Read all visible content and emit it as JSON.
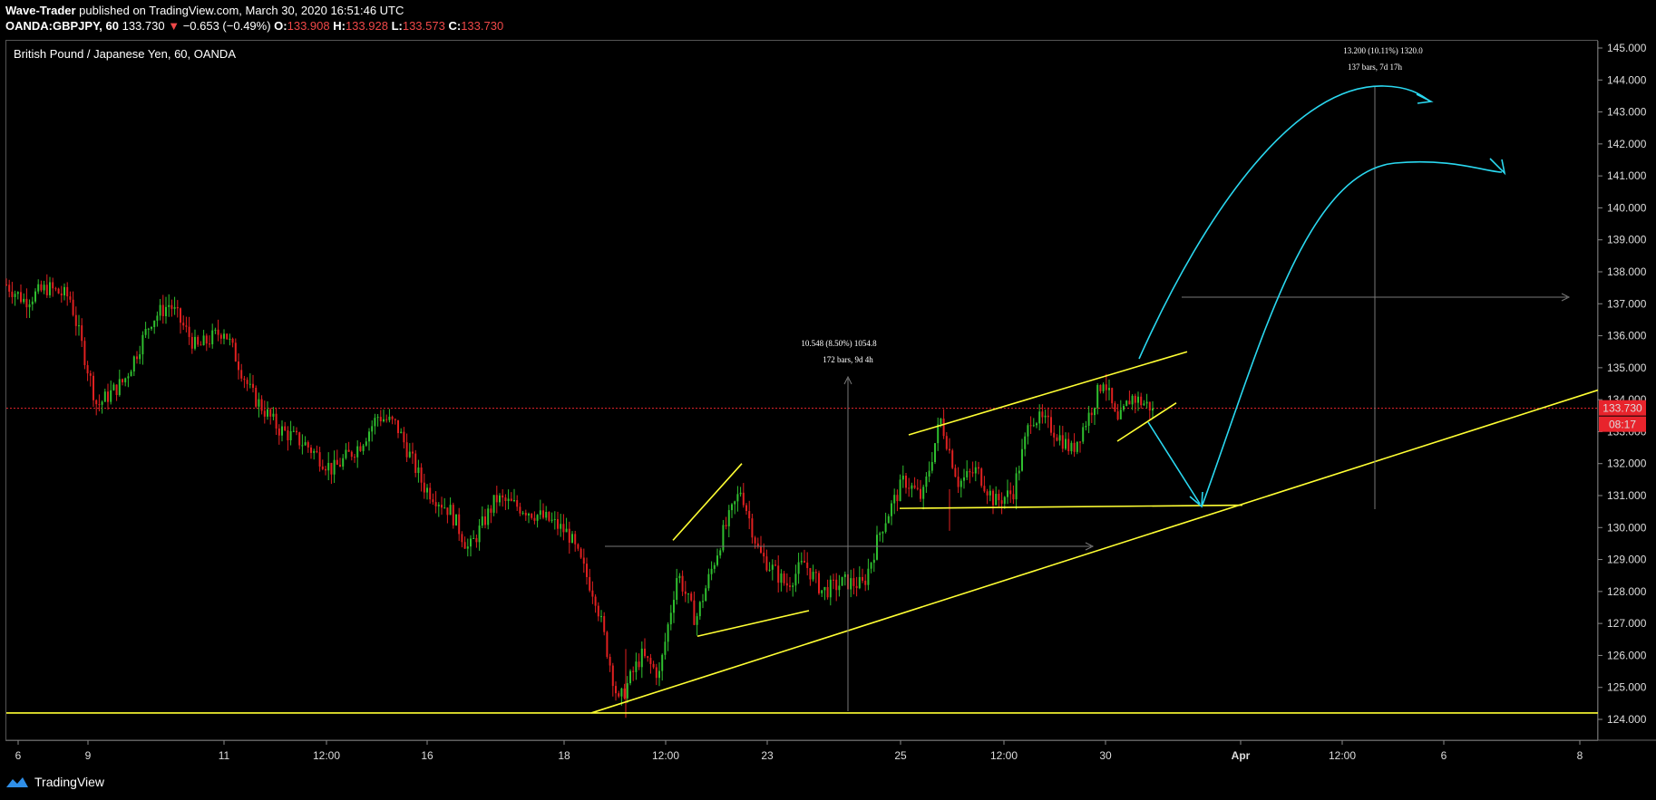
{
  "header": {
    "author": "Wave-Trader",
    "published_text": " published on TradingView.com, March 30, 2020 16:51:46 UTC",
    "symbol": "OANDA:GBPJPY, 60",
    "last": " 133.730 ",
    "change_arrow": "▼",
    "change": " −0.653 (−0.49%) ",
    "o_label": "O:",
    "o_value": "133.908",
    "h_label": " H:",
    "h_value": "133.928",
    "l_label": " L:",
    "l_value": "133.573",
    "c_label": " C:",
    "c_value": "133.730"
  },
  "chart_title": "British Pound / Japanese Yen, 60, OANDA",
  "footer": {
    "brand": "TradingView"
  },
  "colors": {
    "up": "#2fbf2f",
    "down": "#e02020",
    "trendline": "#ffff33",
    "projection": "#2ad8f0",
    "price_label": "#e8242c"
  },
  "chart_data": {
    "type": "candlestick",
    "title": "British Pound / Japanese Yen, 60, OANDA",
    "ylim": [
      123.2,
      145.2
    ],
    "y_ticks": [
      "145.000",
      "144.000",
      "143.000",
      "142.000",
      "141.000",
      "140.000",
      "139.000",
      "138.000",
      "137.000",
      "136.000",
      "135.000",
      "134.000",
      "133.000",
      "132.000",
      "131.000",
      "130.000",
      "129.000",
      "128.000",
      "127.000",
      "126.000",
      "125.000",
      "124.000"
    ],
    "x_ticks": [
      "6",
      "9",
      "11",
      "12:00",
      "16",
      "18",
      "12:00",
      "23",
      "25",
      "12:00",
      "30",
      "Apr",
      "12:00",
      "6",
      "8"
    ],
    "last_price": "133.730",
    "countdown": "08:17",
    "price_path_hint": "approximate hourly candles from ~137.6 down to ~124.3 low, then up to ~134.7 and current 133.73",
    "anchors": [
      [
        0,
        137.6
      ],
      [
        20,
        137.1
      ],
      [
        45,
        137.5
      ],
      [
        70,
        137.2
      ],
      [
        100,
        133.8
      ],
      [
        130,
        134.6
      ],
      [
        160,
        136.5
      ],
      [
        180,
        137.0
      ],
      [
        210,
        135.6
      ],
      [
        240,
        136.2
      ],
      [
        270,
        134.2
      ],
      [
        300,
        133.1
      ],
      [
        330,
        132.6
      ],
      [
        360,
        131.8
      ],
      [
        390,
        132.6
      ],
      [
        410,
        133.5
      ],
      [
        430,
        133.2
      ],
      [
        460,
        131.3
      ],
      [
        490,
        130.5
      ],
      [
        510,
        129.3
      ],
      [
        540,
        130.9
      ],
      [
        570,
        130.6
      ],
      [
        600,
        130.2
      ],
      [
        620,
        129.8
      ],
      [
        650,
        127.8
      ],
      [
        675,
        124.5
      ],
      [
        700,
        126.0
      ],
      [
        720,
        125.4
      ],
      [
        740,
        128.6
      ],
      [
        760,
        127.1
      ],
      [
        790,
        129.8
      ],
      [
        810,
        131.2
      ],
      [
        830,
        129.2
      ],
      [
        860,
        128.2
      ],
      [
        880,
        128.9
      ],
      [
        900,
        128.0
      ],
      [
        925,
        128.3
      ],
      [
        945,
        128.2
      ],
      [
        965,
        130.0
      ],
      [
        990,
        131.5
      ],
      [
        1010,
        130.9
      ],
      [
        1030,
        133.4
      ],
      [
        1050,
        131.4
      ],
      [
        1070,
        131.8
      ],
      [
        1090,
        130.8
      ],
      [
        1110,
        131.1
      ],
      [
        1130,
        133.5
      ],
      [
        1150,
        133.2
      ],
      [
        1175,
        132.4
      ],
      [
        1195,
        133.6
      ],
      [
        1210,
        134.7
      ],
      [
        1225,
        133.2
      ],
      [
        1240,
        134.1
      ],
      [
        1265,
        133.73
      ]
    ],
    "trendlines": [
      {
        "name": "support-horizontal",
        "points": [
          [
            0,
            124.2
          ],
          [
            1762,
            124.2
          ]
        ]
      },
      {
        "name": "rising-support",
        "points": [
          [
            645,
            124.2
          ],
          [
            1762,
            134.3
          ]
        ]
      },
      {
        "name": "wedge-left-upper",
        "points": [
          [
            735,
            129.6
          ],
          [
            811,
            132.0
          ]
        ]
      },
      {
        "name": "wedge-left-lower",
        "points": [
          [
            762,
            126.6
          ],
          [
            885,
            127.4
          ]
        ]
      },
      {
        "name": "channel-upper",
        "points": [
          [
            995,
            132.9
          ],
          [
            1302,
            135.5
          ]
        ]
      },
      {
        "name": "channel-lower",
        "points": [
          [
            985,
            130.6
          ],
          [
            1363,
            130.7
          ]
        ]
      },
      {
        "name": "channel-inner",
        "points": [
          [
            1225,
            132.7
          ],
          [
            1290,
            133.9
          ]
        ]
      }
    ],
    "measures": [
      {
        "line1": "10.548 (8.50%) 1054.8",
        "line2": "172 bars, 9d 4h"
      },
      {
        "line1": "13.200 (10.11%) 1320.0",
        "line2": "137 bars, 7d 17h"
      }
    ]
  }
}
